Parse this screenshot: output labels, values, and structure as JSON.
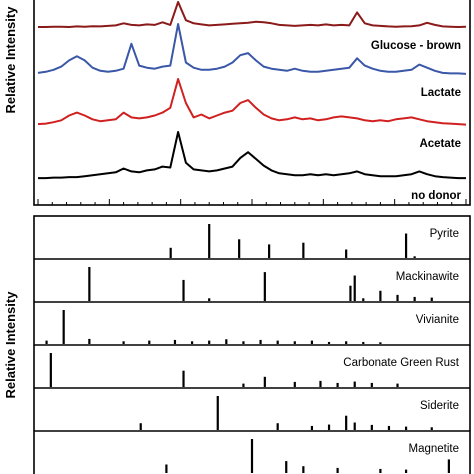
{
  "chart_data": [
    {
      "type": "line",
      "ylabel": "Relative Intensity",
      "series": [
        {
          "name": "Glucose - brown",
          "color": "#8b1a1a",
          "y": [
            0.04,
            0.04,
            0.05,
            0.05,
            0.04,
            0.06,
            0.05,
            0.07,
            0.06,
            0.08,
            0.1,
            0.18,
            0.12,
            0.1,
            0.14,
            0.12,
            0.22,
            0.12,
            1.0,
            0.3,
            0.18,
            0.14,
            0.1,
            0.12,
            0.14,
            0.16,
            0.18,
            0.2,
            0.24,
            0.22,
            0.18,
            0.12,
            0.1,
            0.08,
            0.1,
            0.12,
            0.1,
            0.14,
            0.1,
            0.12,
            0.1,
            0.6,
            0.18,
            0.1,
            0.08,
            0.06,
            0.05,
            0.06,
            0.07,
            0.1,
            0.2,
            0.12,
            0.06,
            0.05,
            0.04,
            0.05
          ]
        },
        {
          "name": "Lactate",
          "color": "#3a57a8",
          "y": [
            0.06,
            0.08,
            0.12,
            0.18,
            0.3,
            0.38,
            0.3,
            0.16,
            0.1,
            0.08,
            0.1,
            0.14,
            0.62,
            0.2,
            0.16,
            0.14,
            0.18,
            0.2,
            1.0,
            0.26,
            0.16,
            0.12,
            0.12,
            0.14,
            0.18,
            0.26,
            0.4,
            0.44,
            0.3,
            0.18,
            0.14,
            0.12,
            0.1,
            0.14,
            0.1,
            0.08,
            0.08,
            0.1,
            0.12,
            0.14,
            0.16,
            0.34,
            0.2,
            0.14,
            0.1,
            0.08,
            0.08,
            0.1,
            0.12,
            0.22,
            0.16,
            0.1,
            0.06,
            0.05,
            0.05,
            0.04
          ]
        },
        {
          "name": "Acetate",
          "color": "#d02020",
          "y": [
            0.06,
            0.07,
            0.1,
            0.14,
            0.24,
            0.3,
            0.24,
            0.16,
            0.12,
            0.14,
            0.16,
            0.3,
            0.2,
            0.18,
            0.2,
            0.24,
            0.3,
            0.4,
            1.0,
            0.5,
            0.2,
            0.26,
            0.18,
            0.24,
            0.3,
            0.34,
            0.5,
            0.56,
            0.4,
            0.26,
            0.18,
            0.14,
            0.16,
            0.2,
            0.16,
            0.18,
            0.14,
            0.16,
            0.2,
            0.22,
            0.2,
            0.18,
            0.14,
            0.12,
            0.14,
            0.12,
            0.16,
            0.18,
            0.2,
            0.16,
            0.12,
            0.1,
            0.08,
            0.07,
            0.06,
            0.05
          ]
        },
        {
          "name": "no donor",
          "color": "#000000",
          "y": [
            0.04,
            0.04,
            0.05,
            0.05,
            0.06,
            0.06,
            0.08,
            0.1,
            0.12,
            0.14,
            0.16,
            0.24,
            0.18,
            0.16,
            0.2,
            0.22,
            0.28,
            0.26,
            1.0,
            0.36,
            0.22,
            0.2,
            0.18,
            0.2,
            0.24,
            0.28,
            0.46,
            0.58,
            0.44,
            0.3,
            0.2,
            0.14,
            0.12,
            0.1,
            0.1,
            0.12,
            0.1,
            0.12,
            0.1,
            0.12,
            0.14,
            0.18,
            0.12,
            0.1,
            0.08,
            0.08,
            0.08,
            0.1,
            0.12,
            0.18,
            0.12,
            0.08,
            0.06,
            0.05,
            0.04,
            0.04
          ]
        }
      ]
    },
    {
      "type": "bar",
      "ylabel": "Relative Intensity",
      "panels": [
        {
          "name": "Pyrite",
          "peaks": [
            [
              0.31,
              0.3
            ],
            [
              0.4,
              1.0
            ],
            [
              0.47,
              0.55
            ],
            [
              0.54,
              0.4
            ],
            [
              0.62,
              0.45
            ],
            [
              0.72,
              0.25
            ],
            [
              0.86,
              0.72
            ],
            [
              0.88,
              0.05
            ]
          ]
        },
        {
          "name": "Mackinawite",
          "peaks": [
            [
              0.12,
              1.0
            ],
            [
              0.34,
              0.62
            ],
            [
              0.4,
              0.08
            ],
            [
              0.53,
              0.85
            ],
            [
              0.73,
              0.45
            ],
            [
              0.74,
              0.75
            ],
            [
              0.76,
              0.08
            ],
            [
              0.8,
              0.3
            ],
            [
              0.84,
              0.18
            ],
            [
              0.88,
              0.12
            ],
            [
              0.92,
              0.1
            ]
          ]
        },
        {
          "name": "Vivianite",
          "peaks": [
            [
              0.02,
              0.1
            ],
            [
              0.06,
              1.0
            ],
            [
              0.12,
              0.15
            ],
            [
              0.2,
              0.08
            ],
            [
              0.26,
              0.1
            ],
            [
              0.32,
              0.12
            ],
            [
              0.36,
              0.08
            ],
            [
              0.4,
              0.1
            ],
            [
              0.44,
              0.14
            ],
            [
              0.48,
              0.08
            ],
            [
              0.52,
              0.12
            ],
            [
              0.56,
              0.1
            ],
            [
              0.6,
              0.08
            ],
            [
              0.64,
              0.1
            ],
            [
              0.68,
              0.06
            ],
            [
              0.72,
              0.08
            ],
            [
              0.76,
              0.06
            ],
            [
              0.8,
              0.05
            ]
          ]
        },
        {
          "name": "Carbonate Green Rust",
          "peaks": [
            [
              0.03,
              1.0
            ],
            [
              0.34,
              0.48
            ],
            [
              0.48,
              0.1
            ],
            [
              0.53,
              0.3
            ],
            [
              0.6,
              0.15
            ],
            [
              0.66,
              0.18
            ],
            [
              0.7,
              0.12
            ],
            [
              0.74,
              0.16
            ],
            [
              0.78,
              0.12
            ],
            [
              0.84,
              0.1
            ]
          ]
        },
        {
          "name": "Siderite",
          "peaks": [
            [
              0.24,
              0.2
            ],
            [
              0.42,
              1.0
            ],
            [
              0.56,
              0.2
            ],
            [
              0.64,
              0.12
            ],
            [
              0.68,
              0.16
            ],
            [
              0.72,
              0.42
            ],
            [
              0.74,
              0.22
            ],
            [
              0.78,
              0.15
            ],
            [
              0.82,
              0.12
            ],
            [
              0.86,
              0.1
            ],
            [
              0.92,
              0.08
            ]
          ]
        },
        {
          "name": "Magnetite",
          "peaks": [
            [
              0.3,
              0.25
            ],
            [
              0.5,
              1.0
            ],
            [
              0.58,
              0.35
            ],
            [
              0.62,
              0.2
            ],
            [
              0.7,
              0.15
            ],
            [
              0.8,
              0.12
            ],
            [
              0.86,
              0.1
            ],
            [
              0.96,
              0.4
            ]
          ]
        }
      ]
    }
  ]
}
